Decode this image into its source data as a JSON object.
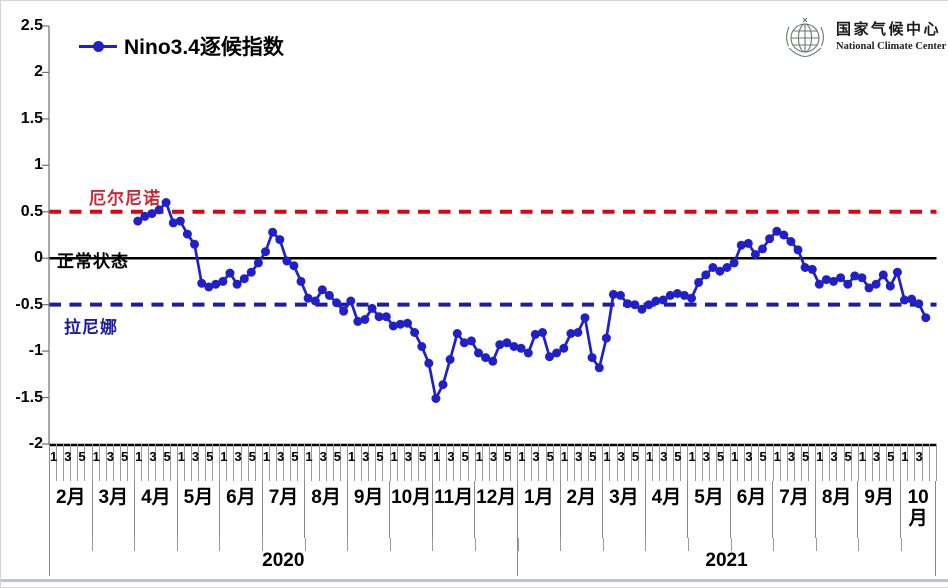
{
  "logo": {
    "title_cn": "国家气候中心",
    "title_en": "National Climate Center"
  },
  "chart_data": {
    "type": "line",
    "title": "Nino3.4逐候指数",
    "series_color": "#2020c8",
    "ylim": [
      -2,
      2.5
    ],
    "y_ticks": [
      "2.5",
      "2",
      "1.5",
      "1",
      "0.5",
      "0",
      "-0.5",
      "-1",
      "-1.5",
      "-2"
    ],
    "grid": false,
    "legend_position": "top-left",
    "reference_lines": [
      {
        "value": 0.5,
        "label": "厄尔尼诺",
        "color": "#e1000f",
        "label_color": "#cc2936",
        "style": "dashed"
      },
      {
        "value": 0,
        "label": "正常状态",
        "color": "#000000",
        "label_color": "#000000",
        "style": "solid"
      },
      {
        "value": -0.5,
        "label": "拉尼娜",
        "color": "#1c1c9e",
        "label_color": "#1c1c9e",
        "style": "dashed"
      }
    ],
    "x_axis": {
      "months": [
        {
          "label": "2月",
          "year": "2020",
          "pentads": 6,
          "pentad_labels": [
            "1",
            "",
            "3",
            "",
            "5",
            ""
          ]
        },
        {
          "label": "3月",
          "year": "2020",
          "pentads": 6,
          "pentad_labels": [
            "1",
            "",
            "3",
            "",
            "5",
            ""
          ]
        },
        {
          "label": "4月",
          "year": "2020",
          "pentads": 6,
          "pentad_labels": [
            "1",
            "",
            "3",
            "",
            "5",
            ""
          ]
        },
        {
          "label": "5月",
          "year": "2020",
          "pentads": 6,
          "pentad_labels": [
            "1",
            "",
            "3",
            "",
            "5",
            ""
          ]
        },
        {
          "label": "6月",
          "year": "2020",
          "pentads": 6,
          "pentad_labels": [
            "1",
            "",
            "3",
            "",
            "5",
            ""
          ]
        },
        {
          "label": "7月",
          "year": "2020",
          "pentads": 6,
          "pentad_labels": [
            "1",
            "",
            "3",
            "",
            "5",
            ""
          ]
        },
        {
          "label": "8月",
          "year": "2020",
          "pentads": 6,
          "pentad_labels": [
            "1",
            "",
            "3",
            "",
            "5",
            ""
          ]
        },
        {
          "label": "9月",
          "year": "2020",
          "pentads": 6,
          "pentad_labels": [
            "1",
            "",
            "3",
            "",
            "5",
            ""
          ]
        },
        {
          "label": "10月",
          "year": "2020",
          "pentads": 6,
          "pentad_labels": [
            "1",
            "",
            "3",
            "",
            "5",
            ""
          ]
        },
        {
          "label": "11月",
          "year": "2020",
          "pentads": 6,
          "pentad_labels": [
            "1",
            "",
            "3",
            "",
            "5",
            ""
          ]
        },
        {
          "label": "12月",
          "year": "2020",
          "pentads": 6,
          "pentad_labels": [
            "1",
            "",
            "3",
            "",
            "5",
            ""
          ]
        },
        {
          "label": "1月",
          "year": "2021",
          "pentads": 6,
          "pentad_labels": [
            "1",
            "",
            "3",
            "",
            "5",
            ""
          ]
        },
        {
          "label": "2月",
          "year": "2021",
          "pentads": 6,
          "pentad_labels": [
            "1",
            "",
            "3",
            "",
            "5",
            ""
          ]
        },
        {
          "label": "3月",
          "year": "2021",
          "pentads": 6,
          "pentad_labels": [
            "1",
            "",
            "3",
            "",
            "5",
            ""
          ]
        },
        {
          "label": "4月",
          "year": "2021",
          "pentads": 6,
          "pentad_labels": [
            "1",
            "",
            "3",
            "",
            "5",
            ""
          ]
        },
        {
          "label": "5月",
          "year": "2021",
          "pentads": 6,
          "pentad_labels": [
            "1",
            "",
            "3",
            "",
            "5",
            ""
          ]
        },
        {
          "label": "6月",
          "year": "2021",
          "pentads": 6,
          "pentad_labels": [
            "1",
            "",
            "3",
            "",
            "5",
            ""
          ]
        },
        {
          "label": "7月",
          "year": "2021",
          "pentads": 6,
          "pentad_labels": [
            "1",
            "",
            "3",
            "",
            "5",
            ""
          ]
        },
        {
          "label": "8月",
          "year": "2021",
          "pentads": 6,
          "pentad_labels": [
            "1",
            "",
            "3",
            "",
            "5",
            ""
          ]
        },
        {
          "label": "9月",
          "year": "2021",
          "pentads": 6,
          "pentad_labels": [
            "1",
            "",
            "3",
            "",
            "5",
            ""
          ]
        },
        {
          "label": "10月",
          "year": "2021",
          "pentads": 5,
          "pentad_labels": [
            "1",
            "",
            "3",
            "",
            ""
          ]
        }
      ],
      "years": [
        {
          "label": "2020",
          "pentads": 66
        },
        {
          "label": "2021",
          "pentads": 59
        }
      ]
    },
    "series": {
      "name": "Nino3.4逐候指数",
      "start": {
        "year": "2020",
        "month": "4月",
        "pentad": 1,
        "month_index": 2
      },
      "values": [
        0.4,
        0.45,
        0.48,
        0.52,
        0.6,
        0.38,
        0.4,
        0.26,
        0.15,
        -0.27,
        -0.31,
        -0.28,
        -0.25,
        -0.16,
        -0.28,
        -0.22,
        -0.15,
        -0.05,
        0.07,
        0.28,
        0.2,
        -0.03,
        -0.08,
        -0.25,
        -0.43,
        -0.46,
        -0.34,
        -0.4,
        -0.48,
        -0.57,
        -0.46,
        -0.68,
        -0.66,
        -0.54,
        -0.63,
        -0.63,
        -0.73,
        -0.71,
        -0.7,
        -0.8,
        -0.95,
        -1.13,
        -1.51,
        -1.36,
        -1.09,
        -0.81,
        -0.91,
        -0.89,
        -1.02,
        -1.07,
        -1.11,
        -0.93,
        -0.91,
        -0.95,
        -0.97,
        -1.02,
        -0.82,
        -0.8,
        -1.06,
        -1.02,
        -0.97,
        -0.81,
        -0.8,
        -0.64,
        -1.07,
        -1.18,
        -0.86,
        -0.39,
        -0.4,
        -0.49,
        -0.5,
        -0.55,
        -0.5,
        -0.46,
        -0.45,
        -0.4,
        -0.38,
        -0.4,
        -0.43,
        -0.26,
        -0.18,
        -0.1,
        -0.14,
        -0.1,
        -0.05,
        0.14,
        0.16,
        0.04,
        0.1,
        0.21,
        0.29,
        0.25,
        0.18,
        0.09,
        -0.1,
        -0.12,
        -0.28,
        -0.23,
        -0.25,
        -0.21,
        -0.28,
        -0.19,
        -0.21,
        -0.32,
        -0.28,
        -0.18,
        -0.3,
        -0.15,
        -0.45,
        -0.44,
        -0.49,
        -0.64
      ]
    }
  }
}
